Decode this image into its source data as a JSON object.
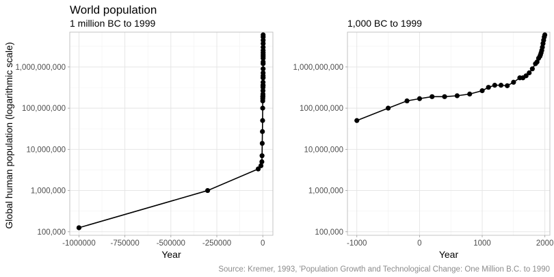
{
  "figure": {
    "title": "World population",
    "caption": "Source: Kremer, 1993, 'Population Growth and Technological Change: One Million B.C. to 1990",
    "ylabel": "Global human population (logarithmic scale)"
  },
  "chart_data": [
    {
      "type": "line",
      "subtitle": "1 million BC to 1999",
      "xlabel": "Year",
      "ylabel": "Global human population (logarithmic scale)",
      "y_scale": "log",
      "xlim": [
        -1050000,
        55000
      ],
      "ylim": [
        82000,
        7000000000
      ],
      "x_ticks": [
        -1000000,
        -750000,
        -500000,
        -250000,
        0
      ],
      "x_tick_labels": [
        "-1000000",
        "-750000",
        "-500000",
        "-250000",
        "0"
      ],
      "y_ticks": [
        100000,
        1000000,
        10000000,
        100000000,
        1000000000
      ],
      "y_tick_labels": [
        "100,000",
        "1,000,000",
        "10,000,000",
        "100,000,000",
        "1,000,000,000"
      ],
      "grid": true,
      "x": [
        -1000000,
        -300000,
        -25000,
        -10000,
        -5000,
        -4000,
        -3000,
        -2000,
        -1000,
        -500,
        -200,
        1,
        200,
        400,
        600,
        800,
        1000,
        1100,
        1200,
        1300,
        1400,
        1500,
        1600,
        1650,
        1700,
        1750,
        1800,
        1850,
        1875,
        1900,
        1920,
        1930,
        1940,
        1950,
        1960,
        1970,
        1980,
        1990,
        1999
      ],
      "y": [
        125000,
        1000000,
        3340000,
        4000000,
        5000000,
        7000000,
        14000000,
        27000000,
        50000000,
        100000000,
        150000000,
        170000000,
        190000000,
        190000000,
        200000000,
        220000000,
        265000000,
        320000000,
        360000000,
        360000000,
        350000000,
        425000000,
        545000000,
        545000000,
        610000000,
        720000000,
        900000000,
        1200000000,
        1325000000,
        1625000000,
        1813000000,
        1987000000,
        2213000000,
        2516000000,
        3019000000,
        3693000000,
        4450000000,
        5333000000,
        6000000000
      ]
    },
    {
      "type": "line",
      "subtitle": "1,000 BC to 1999",
      "xlabel": "Year",
      "y_scale": "log",
      "xlim": [
        -1150,
        2080
      ],
      "ylim": [
        82000,
        7000000000
      ],
      "x_ticks": [
        -1000,
        0,
        1000,
        2000
      ],
      "x_tick_labels": [
        "-1000",
        "0",
        "1000",
        "2000"
      ],
      "y_ticks": [
        100000,
        1000000,
        10000000,
        100000000,
        1000000000
      ],
      "y_tick_labels": [
        "100,000",
        "1,000,000",
        "10,000,000",
        "100,000,000",
        "1,000,000,000"
      ],
      "grid": true,
      "x": [
        -1000,
        -500,
        -200,
        1,
        200,
        400,
        600,
        800,
        1000,
        1100,
        1200,
        1300,
        1400,
        1500,
        1600,
        1650,
        1700,
        1750,
        1800,
        1850,
        1875,
        1900,
        1920,
        1930,
        1940,
        1950,
        1960,
        1970,
        1980,
        1990,
        1999
      ],
      "y": [
        50000000,
        100000000,
        150000000,
        170000000,
        190000000,
        190000000,
        200000000,
        220000000,
        265000000,
        320000000,
        360000000,
        360000000,
        350000000,
        425000000,
        545000000,
        545000000,
        610000000,
        720000000,
        900000000,
        1200000000,
        1325000000,
        1625000000,
        1813000000,
        1987000000,
        2213000000,
        2516000000,
        3019000000,
        3693000000,
        4450000000,
        5333000000,
        6000000000
      ]
    }
  ]
}
